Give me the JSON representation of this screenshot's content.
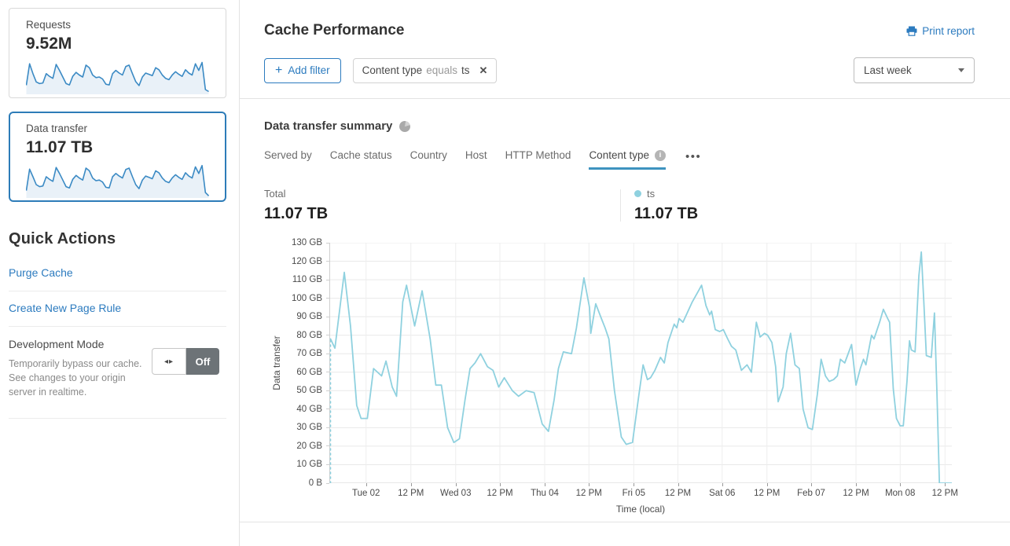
{
  "sidebar": {
    "cards": [
      {
        "label": "Requests",
        "value": "9.52M",
        "selected": false,
        "spark": [
          25,
          90,
          60,
          35,
          30,
          32,
          60,
          52,
          46,
          88,
          70,
          50,
          30,
          26,
          52,
          64,
          56,
          50,
          86,
          78,
          56,
          48,
          50,
          44,
          28,
          26,
          60,
          70,
          62,
          56,
          82,
          86,
          60,
          36,
          24,
          50,
          62,
          58,
          54,
          78,
          72,
          56,
          46,
          42,
          56,
          66,
          58,
          52,
          72,
          62,
          56,
          90,
          70,
          94,
          12,
          6
        ]
      },
      {
        "label": "Data transfer",
        "value": "11.07 TB",
        "selected": true,
        "spark": [
          20,
          85,
          62,
          38,
          32,
          34,
          62,
          54,
          48,
          90,
          72,
          52,
          32,
          28,
          54,
          66,
          58,
          52,
          88,
          80,
          58,
          50,
          52,
          46,
          30,
          28,
          62,
          72,
          64,
          58,
          84,
          88,
          62,
          38,
          26,
          52,
          64,
          60,
          56,
          80,
          74,
          58,
          48,
          44,
          58,
          68,
          60,
          54,
          74,
          64,
          58,
          92,
          72,
          96,
          14,
          4
        ]
      }
    ],
    "quick_actions_title": "Quick Actions",
    "links": [
      {
        "label": "Purge Cache"
      },
      {
        "label": "Create New Page Rule"
      }
    ],
    "dev_mode": {
      "title": "Development Mode",
      "description": "Temporarily bypass our cache. See changes to your origin server in realtime.",
      "toggle_state": "Off"
    }
  },
  "header": {
    "title": "Cache Performance",
    "print_label": "Print report",
    "add_filter_label": "Add filter",
    "filter": {
      "field": "Content type",
      "operator": "equals",
      "value": "ts"
    },
    "range_selected": "Last week"
  },
  "summary": {
    "title": "Data transfer summary",
    "tabs": [
      {
        "label": "Served by"
      },
      {
        "label": "Cache status"
      },
      {
        "label": "Country"
      },
      {
        "label": "Host"
      },
      {
        "label": "HTTP Method"
      },
      {
        "label": "Content type",
        "active": true,
        "info": true
      }
    ],
    "stats": {
      "total_label": "Total",
      "total_value": "11.07 TB",
      "series_label": "ts",
      "series_value": "11.07 TB"
    }
  },
  "chart_data": {
    "type": "line",
    "title": "Data transfer summary",
    "ylabel": "Data transfer",
    "xlabel": "Time (local)",
    "unit": "GB",
    "ylim": [
      0,
      130
    ],
    "grid": true,
    "y_ticks": [
      "0 B",
      "10 GB",
      "20 GB",
      "30 GB",
      "40 GB",
      "50 GB",
      "60 GB",
      "70 GB",
      "80 GB",
      "90 GB",
      "100 GB",
      "110 GB",
      "120 GB",
      "130 GB"
    ],
    "x_ticks": [
      {
        "label": "Tue 02",
        "f": 0.059
      },
      {
        "label": "12 PM",
        "f": 0.131
      },
      {
        "label": "Wed 03",
        "f": 0.203
      },
      {
        "label": "12 PM",
        "f": 0.274
      },
      {
        "label": "Thu 04",
        "f": 0.346
      },
      {
        "label": "12 PM",
        "f": 0.417
      },
      {
        "label": "Fri 05",
        "f": 0.489
      },
      {
        "label": "12 PM",
        "f": 0.56
      },
      {
        "label": "Sat 06",
        "f": 0.631
      },
      {
        "label": "12 PM",
        "f": 0.703
      },
      {
        "label": "Feb 07",
        "f": 0.774
      },
      {
        "label": "12 PM",
        "f": 0.846
      },
      {
        "label": "Mon 08",
        "f": 0.917
      },
      {
        "label": "12 PM",
        "f": 0.989
      }
    ],
    "series": [
      {
        "name": "ts",
        "color": "#8fd1df",
        "leading_dash_from_zero": true,
        "points": [
          [
            0,
            78
          ],
          [
            0.009,
            73
          ],
          [
            0.024,
            114
          ],
          [
            0.034,
            85
          ],
          [
            0.044,
            42
          ],
          [
            0.051,
            35
          ],
          [
            0.061,
            35
          ],
          [
            0.071,
            62
          ],
          [
            0.084,
            58
          ],
          [
            0.091,
            66
          ],
          [
            0.101,
            52
          ],
          [
            0.108,
            47
          ],
          [
            0.118,
            98
          ],
          [
            0.124,
            107
          ],
          [
            0.137,
            85
          ],
          [
            0.149,
            104
          ],
          [
            0.162,
            78
          ],
          [
            0.171,
            53
          ],
          [
            0.18,
            53
          ],
          [
            0.19,
            30
          ],
          [
            0.2,
            22
          ],
          [
            0.209,
            24
          ],
          [
            0.218,
            45
          ],
          [
            0.226,
            62
          ],
          [
            0.234,
            65
          ],
          [
            0.243,
            70
          ],
          [
            0.254,
            63
          ],
          [
            0.263,
            61
          ],
          [
            0.272,
            52
          ],
          [
            0.281,
            57
          ],
          [
            0.294,
            50
          ],
          [
            0.304,
            47
          ],
          [
            0.316,
            50
          ],
          [
            0.329,
            49
          ],
          [
            0.342,
            32
          ],
          [
            0.352,
            28
          ],
          [
            0.361,
            45
          ],
          [
            0.368,
            62
          ],
          [
            0.376,
            71
          ],
          [
            0.389,
            70
          ],
          [
            0.397,
            84
          ],
          [
            0.409,
            111
          ],
          [
            0.418,
            95
          ],
          [
            0.42,
            81
          ],
          [
            0.428,
            97
          ],
          [
            0.437,
            89
          ],
          [
            0.443,
            84
          ],
          [
            0.449,
            78
          ],
          [
            0.458,
            50
          ],
          [
            0.469,
            25
          ],
          [
            0.477,
            21
          ],
          [
            0.487,
            22
          ],
          [
            0.497,
            47
          ],
          [
            0.504,
            64
          ],
          [
            0.511,
            56
          ],
          [
            0.516,
            57
          ],
          [
            0.523,
            61
          ],
          [
            0.532,
            68
          ],
          [
            0.538,
            65
          ],
          [
            0.544,
            76
          ],
          [
            0.554,
            86
          ],
          [
            0.558,
            84
          ],
          [
            0.562,
            89
          ],
          [
            0.568,
            87
          ],
          [
            0.583,
            98
          ],
          [
            0.593,
            104
          ],
          [
            0.598,
            107
          ],
          [
            0.605,
            96
          ],
          [
            0.611,
            91
          ],
          [
            0.614,
            93
          ],
          [
            0.62,
            83
          ],
          [
            0.627,
            82
          ],
          [
            0.633,
            83
          ],
          [
            0.64,
            78
          ],
          [
            0.646,
            74
          ],
          [
            0.653,
            72
          ],
          [
            0.662,
            61
          ],
          [
            0.671,
            64
          ],
          [
            0.678,
            60
          ],
          [
            0.686,
            87
          ],
          [
            0.692,
            79
          ],
          [
            0.699,
            81
          ],
          [
            0.704,
            80
          ],
          [
            0.711,
            76
          ],
          [
            0.717,
            63
          ],
          [
            0.721,
            44
          ],
          [
            0.729,
            52
          ],
          [
            0.734,
            70
          ],
          [
            0.741,
            81
          ],
          [
            0.748,
            64
          ],
          [
            0.755,
            62
          ],
          [
            0.761,
            40
          ],
          [
            0.769,
            30
          ],
          [
            0.776,
            29
          ],
          [
            0.784,
            48
          ],
          [
            0.79,
            67
          ],
          [
            0.797,
            58
          ],
          [
            0.803,
            55
          ],
          [
            0.81,
            56
          ],
          [
            0.816,
            58
          ],
          [
            0.821,
            67
          ],
          [
            0.828,
            65
          ],
          [
            0.839,
            75
          ],
          [
            0.846,
            53
          ],
          [
            0.853,
            62
          ],
          [
            0.858,
            67
          ],
          [
            0.862,
            64
          ],
          [
            0.871,
            80
          ],
          [
            0.875,
            78
          ],
          [
            0.884,
            87
          ],
          [
            0.89,
            94
          ],
          [
            0.897,
            89
          ],
          [
            0.9,
            87
          ],
          [
            0.906,
            51
          ],
          [
            0.911,
            35
          ],
          [
            0.917,
            31
          ],
          [
            0.922,
            31
          ],
          [
            0.928,
            55
          ],
          [
            0.932,
            77
          ],
          [
            0.935,
            72
          ],
          [
            0.941,
            71
          ],
          [
            0.947,
            112
          ],
          [
            0.951,
            125
          ],
          [
            0.955,
            98
          ],
          [
            0.959,
            69
          ],
          [
            0.967,
            68
          ],
          [
            0.972,
            92
          ],
          [
            0.976,
            50
          ],
          [
            0.98,
            0
          ],
          [
            1,
            0
          ]
        ]
      }
    ]
  },
  "icons": {
    "plus": "+",
    "close": "✕",
    "more": "•••",
    "toggle_arrows": "◂▸",
    "info": "i"
  },
  "colors": {
    "accent_blue": "#2c7bbf",
    "tab_underline": "#3e93bf",
    "line_cyan": "#8fd1df",
    "spark_stroke": "#3b8ac4",
    "spark_fill": "#e9f1f8",
    "selected_card_border": "#2d7cb8",
    "toggle_gray": "#6d7377",
    "grid_line": "#e9e9e9"
  }
}
